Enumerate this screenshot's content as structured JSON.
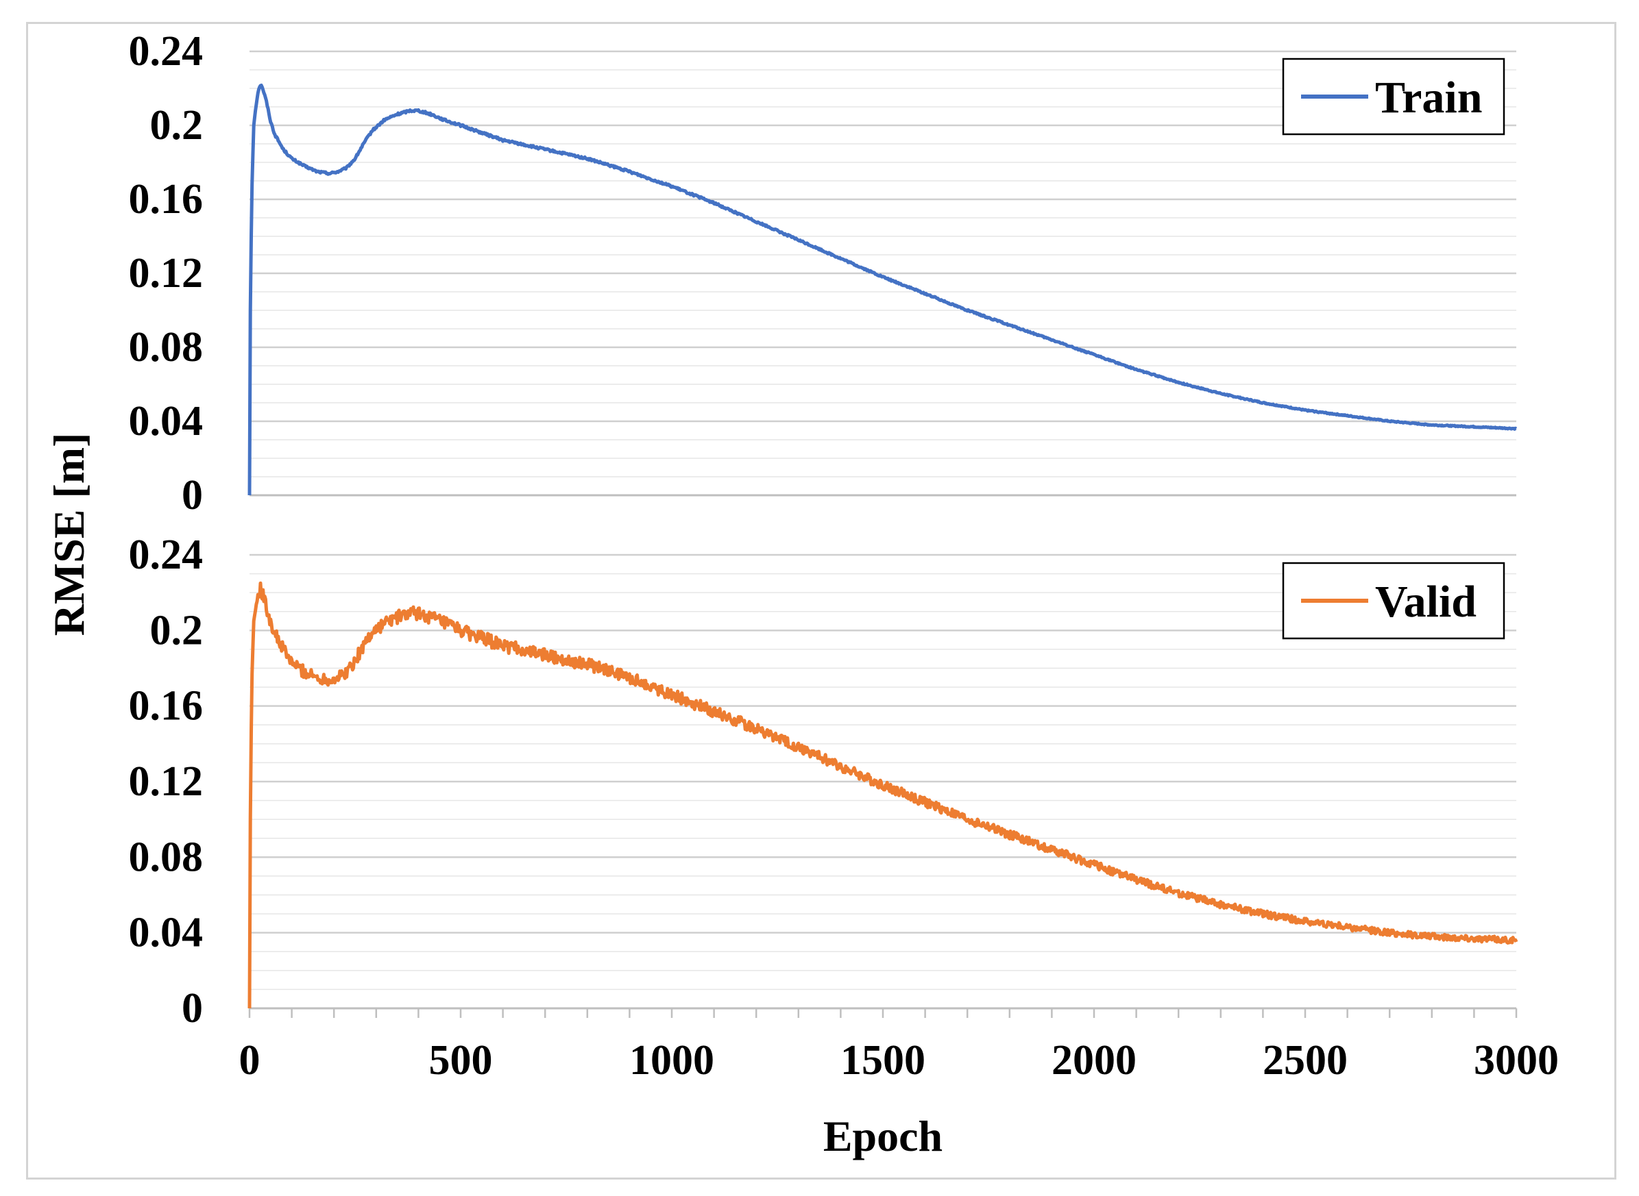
{
  "chart_data": [
    {
      "type": "line",
      "panel": "top",
      "ylabel": "RMSE [m]",
      "xlim": [
        0,
        3000
      ],
      "ylim": [
        0,
        0.24
      ],
      "yticks": [
        "0",
        "0.04",
        "0.08",
        "0.12",
        "0.16",
        "0.2",
        "0.24"
      ],
      "grid": true,
      "legend": "top-right",
      "series": [
        {
          "name": "Train",
          "color": "#4472C4",
          "noise": 0.0006,
          "x": [
            0,
            2,
            5,
            10,
            15,
            20,
            25,
            30,
            40,
            50,
            60,
            80,
            100,
            130,
            160,
            190,
            210,
            230,
            250,
            270,
            290,
            320,
            350,
            380,
            400,
            430,
            460,
            500,
            550,
            600,
            700,
            800,
            900,
            1000,
            1100,
            1200,
            1300,
            1400,
            1500,
            1600,
            1700,
            1800,
            1900,
            2000,
            2100,
            2200,
            2300,
            2400,
            2500,
            2600,
            2700,
            2800,
            2900,
            3000
          ],
          "y": [
            0,
            0.1,
            0.16,
            0.2,
            0.21,
            0.218,
            0.222,
            0.221,
            0.213,
            0.202,
            0.195,
            0.187,
            0.182,
            0.178,
            0.175,
            0.174,
            0.175,
            0.177,
            0.182,
            0.19,
            0.197,
            0.203,
            0.206,
            0.208,
            0.208,
            0.206,
            0.203,
            0.2,
            0.196,
            0.192,
            0.187,
            0.182,
            0.175,
            0.167,
            0.158,
            0.148,
            0.138,
            0.128,
            0.118,
            0.109,
            0.1,
            0.092,
            0.084,
            0.076,
            0.068,
            0.061,
            0.055,
            0.05,
            0.046,
            0.043,
            0.04,
            0.038,
            0.037,
            0.036
          ]
        }
      ]
    },
    {
      "type": "line",
      "panel": "bottom",
      "xlabel": "Epoch",
      "ylabel": "RMSE [m]",
      "xlim": [
        0,
        3000
      ],
      "ylim": [
        0,
        0.24
      ],
      "yticks": [
        "0",
        "0.04",
        "0.08",
        "0.12",
        "0.16",
        "0.2",
        "0.24"
      ],
      "xticks": [
        "0",
        "500",
        "1000",
        "1500",
        "2000",
        "2500",
        "3000"
      ],
      "grid": true,
      "legend": "top-right",
      "series": [
        {
          "name": "Valid",
          "color": "#ED7D31",
          "noise": 0.0035,
          "x": [
            0,
            2,
            5,
            10,
            15,
            20,
            25,
            30,
            40,
            50,
            60,
            80,
            100,
            130,
            160,
            190,
            210,
            230,
            250,
            270,
            290,
            320,
            350,
            380,
            400,
            430,
            460,
            500,
            550,
            600,
            700,
            800,
            900,
            1000,
            1100,
            1200,
            1300,
            1400,
            1500,
            1600,
            1700,
            1800,
            1900,
            2000,
            2100,
            2200,
            2300,
            2400,
            2500,
            2600,
            2700,
            2800,
            2900,
            3000
          ],
          "y": [
            0,
            0.1,
            0.17,
            0.205,
            0.212,
            0.218,
            0.222,
            0.22,
            0.212,
            0.205,
            0.198,
            0.19,
            0.183,
            0.178,
            0.175,
            0.174,
            0.175,
            0.178,
            0.184,
            0.192,
            0.199,
            0.204,
            0.207,
            0.209,
            0.209,
            0.207,
            0.204,
            0.2,
            0.196,
            0.192,
            0.187,
            0.182,
            0.175,
            0.166,
            0.157,
            0.148,
            0.138,
            0.128,
            0.118,
            0.109,
            0.1,
            0.092,
            0.084,
            0.076,
            0.068,
            0.061,
            0.055,
            0.05,
            0.046,
            0.043,
            0.04,
            0.038,
            0.037,
            0.036
          ]
        }
      ]
    }
  ]
}
